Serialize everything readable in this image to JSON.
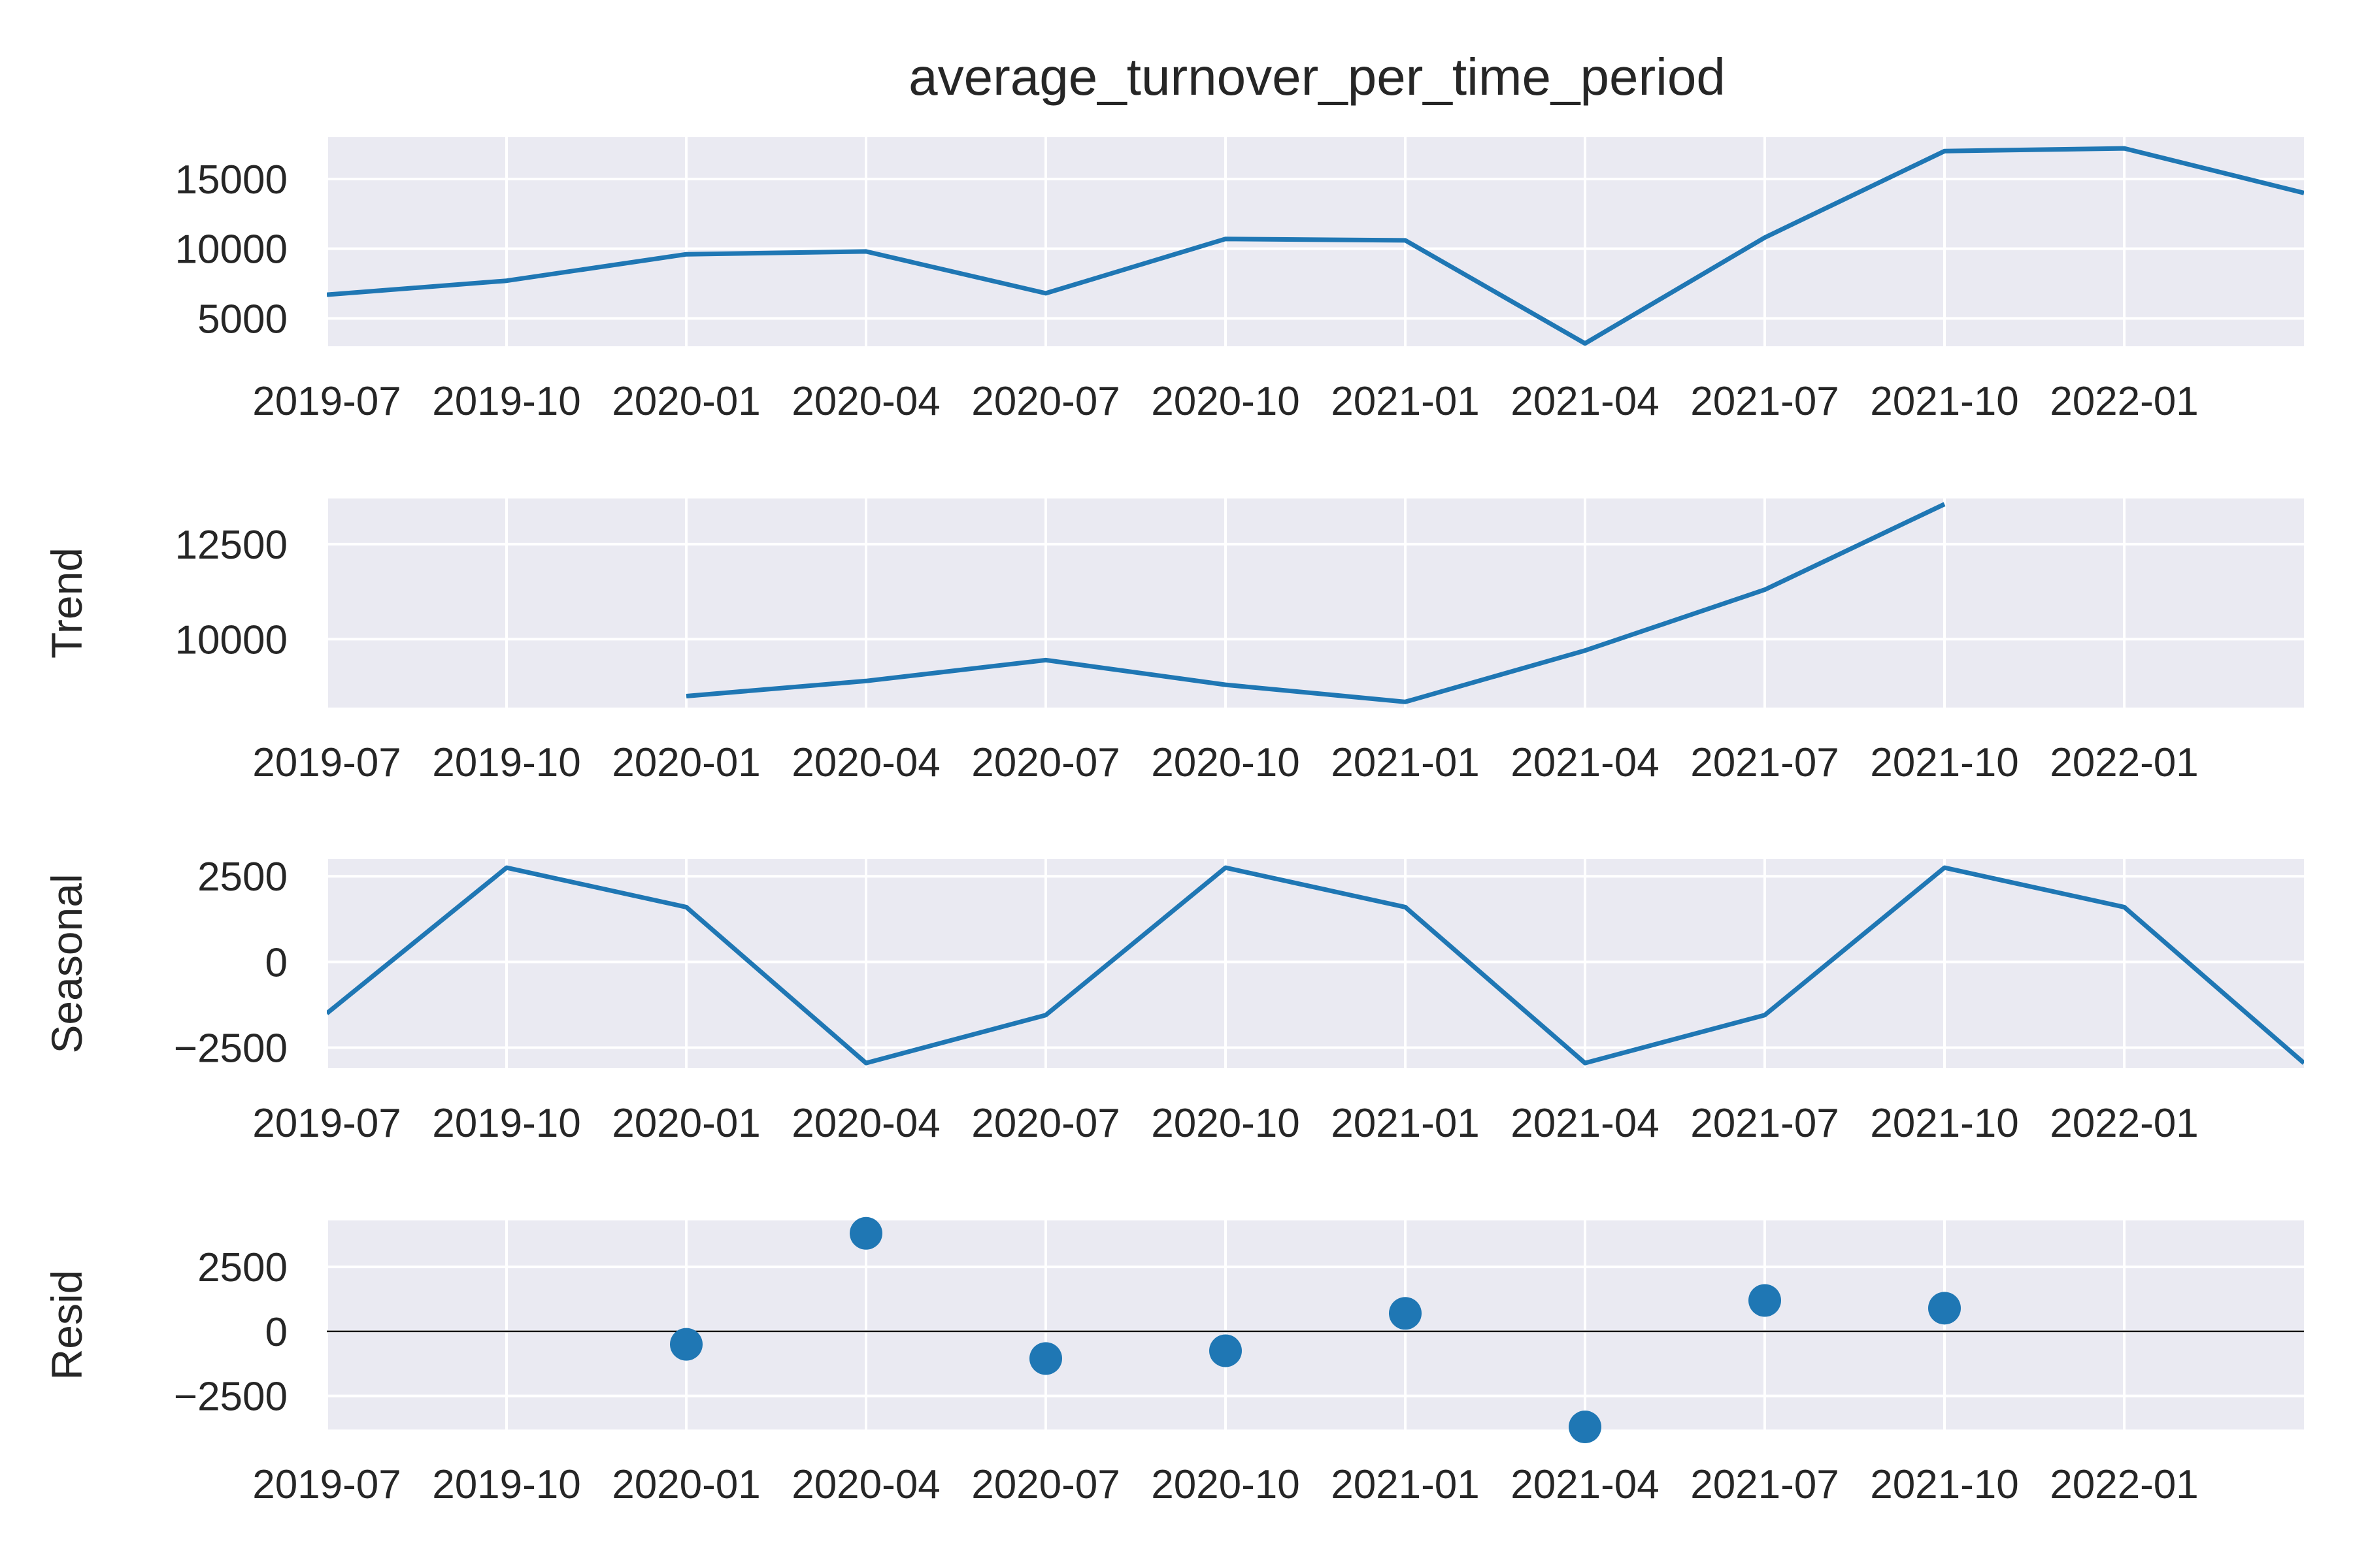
{
  "title": "average_turnover_per_time_period",
  "colors": {
    "line": "#1f77b4",
    "plot_background": "#eaeaf2",
    "grid": "#ffffff",
    "text": "#262626",
    "zero_line": "#000000"
  },
  "x_axis": {
    "tick_labels": [
      "2019-07",
      "2019-10",
      "2020-01",
      "2020-04",
      "2020-07",
      "2020-10",
      "2021-01",
      "2021-04",
      "2021-07",
      "2021-10",
      "2022-01"
    ],
    "range": [
      "2019-07",
      "2022-04"
    ]
  },
  "chart_data": [
    {
      "type": "line",
      "name": "observed",
      "ylabel": "",
      "ylim": [
        3000,
        18000
      ],
      "yticks": [
        5000,
        10000,
        15000
      ],
      "x": [
        "2019-07",
        "2019-10",
        "2020-01",
        "2020-04",
        "2020-07",
        "2020-10",
        "2021-01",
        "2021-04",
        "2021-07",
        "2021-10",
        "2022-01",
        "2022-04"
      ],
      "y": [
        6700,
        7700,
        9600,
        9800,
        6800,
        10700,
        10600,
        3200,
        10800,
        17000,
        17200,
        14000
      ]
    },
    {
      "type": "line",
      "name": "trend",
      "ylabel": "Trend",
      "ylim": [
        8200,
        13700
      ],
      "yticks": [
        10000,
        12500
      ],
      "x": [
        "2020-01",
        "2020-04",
        "2020-07",
        "2020-10",
        "2021-01",
        "2021-04",
        "2021-07",
        "2021-10"
      ],
      "y": [
        8500,
        8900,
        9450,
        8800,
        8350,
        9700,
        11300,
        13550
      ]
    },
    {
      "type": "line",
      "name": "seasonal",
      "ylabel": "Seasonal",
      "ylim": [
        -3100,
        3000
      ],
      "yticks": [
        -2500,
        0,
        2500
      ],
      "x": [
        "2019-07",
        "2019-10",
        "2020-01",
        "2020-04",
        "2020-07",
        "2020-10",
        "2021-01",
        "2021-04",
        "2021-07",
        "2021-10",
        "2022-01",
        "2022-04"
      ],
      "y": [
        -1500,
        2750,
        1600,
        -2950,
        -1550,
        2750,
        1600,
        -2950,
        -1550,
        2750,
        1600,
        -2950
      ]
    },
    {
      "type": "scatter",
      "name": "resid",
      "ylabel": "Resid",
      "ylim": [
        -3800,
        4300
      ],
      "yticks": [
        -2500,
        0,
        2500
      ],
      "zero_line": true,
      "x": [
        "2020-01",
        "2020-04",
        "2020-07",
        "2020-10",
        "2021-01",
        "2021-04",
        "2021-07",
        "2021-10"
      ],
      "y": [
        -500,
        3800,
        -1050,
        -750,
        700,
        -3700,
        1200,
        900
      ]
    }
  ]
}
